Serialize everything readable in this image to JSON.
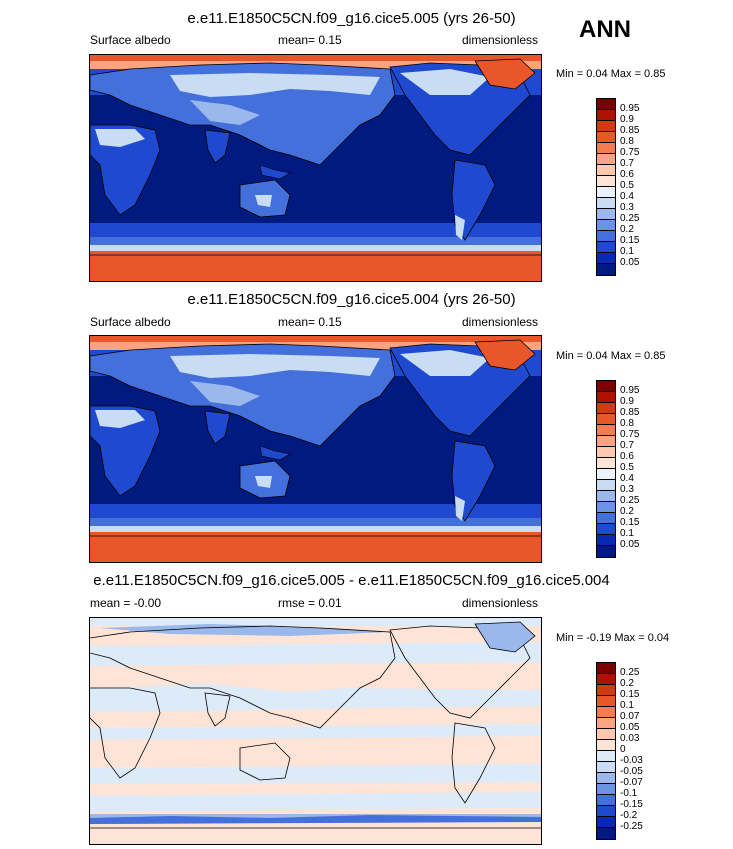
{
  "corner_label": "ANN",
  "panels": [
    {
      "title": "e.e11.E1850C5CN.f09_g16.cice5.005 (yrs 26-50)",
      "left_label": "Surface albedo",
      "mid_label": "mean=  0.15",
      "right_label": "dimensionless",
      "minmax": "Min =  0.04 Max =  0.85"
    },
    {
      "title": "e.e11.E1850C5CN.f09_g16.cice5.004 (yrs 26-50)",
      "left_label": "Surface albedo",
      "mid_label": "mean=  0.15",
      "right_label": "dimensionless",
      "minmax": "Min =  0.04 Max =  0.85"
    },
    {
      "title": "e.e11.E1850C5CN.f09_g16.cice5.005 - e.e11.E1850C5CN.f09_g16.cice5.004",
      "left_label": "mean = -0.00",
      "mid_label": "rmse =  0.01",
      "right_label": "dimensionless",
      "minmax": "Min = -0.19 Max =  0.04"
    }
  ],
  "chart_data": [
    {
      "type": "heatmap",
      "title": "e.e11.E1850C5CN.f09_g16.cice5.005 (yrs 26-50)",
      "variable": "Surface albedo",
      "units": "dimensionless",
      "mean": 0.15,
      "min": 0.04,
      "max": 0.85,
      "colorbar_levels": [
        "0.95",
        "0.9",
        "0.85",
        "0.8",
        "0.75",
        "0.7",
        "0.6",
        "0.5",
        "0.4",
        "0.3",
        "0.25",
        "0.2",
        "0.15",
        "0.1",
        "0.05"
      ],
      "colorbar_colors": [
        "#7a0000",
        "#b01000",
        "#d43a12",
        "#e8562a",
        "#f47c52",
        "#fca382",
        "#fdc8ae",
        "#fde4d6",
        "#ecf2fb",
        "#c8dcf4",
        "#9ab8ec",
        "#6c93e4",
        "#4470dc",
        "#1f4ad0",
        "#0a28b8",
        "#001a80"
      ]
    },
    {
      "type": "heatmap",
      "title": "e.e11.E1850C5CN.f09_g16.cice5.004 (yrs 26-50)",
      "variable": "Surface albedo",
      "units": "dimensionless",
      "mean": 0.15,
      "min": 0.04,
      "max": 0.85,
      "colorbar_levels": [
        "0.95",
        "0.9",
        "0.85",
        "0.8",
        "0.75",
        "0.7",
        "0.6",
        "0.5",
        "0.4",
        "0.3",
        "0.25",
        "0.2",
        "0.15",
        "0.1",
        "0.05"
      ],
      "colorbar_colors": [
        "#7a0000",
        "#b01000",
        "#d43a12",
        "#e8562a",
        "#f47c52",
        "#fca382",
        "#fdc8ae",
        "#fde4d6",
        "#ecf2fb",
        "#c8dcf4",
        "#9ab8ec",
        "#6c93e4",
        "#4470dc",
        "#1f4ad0",
        "#0a28b8",
        "#001a80"
      ]
    },
    {
      "type": "heatmap",
      "title": "e.e11.E1850C5CN.f09_g16.cice5.005 - e.e11.E1850C5CN.f09_g16.cice5.004",
      "units": "dimensionless",
      "mean": -0.0,
      "rmse": 0.01,
      "min": -0.19,
      "max": 0.04,
      "colorbar_levels": [
        "0.25",
        "0.2",
        "0.15",
        "0.1",
        "0.07",
        "0.05",
        "0.03",
        "0",
        "-0.03",
        "-0.05",
        "-0.07",
        "-0.1",
        "-0.15",
        "-0.2",
        "-0.25"
      ],
      "colorbar_colors": [
        "#7a0000",
        "#b01000",
        "#d43a12",
        "#e8562a",
        "#f47c52",
        "#fca382",
        "#fdc8ae",
        "#fde4d6",
        "#ddeaf8",
        "#c8dcf4",
        "#9ab8ec",
        "#6c93e4",
        "#4470dc",
        "#1f4ad0",
        "#0a28b8",
        "#001a80"
      ]
    }
  ]
}
